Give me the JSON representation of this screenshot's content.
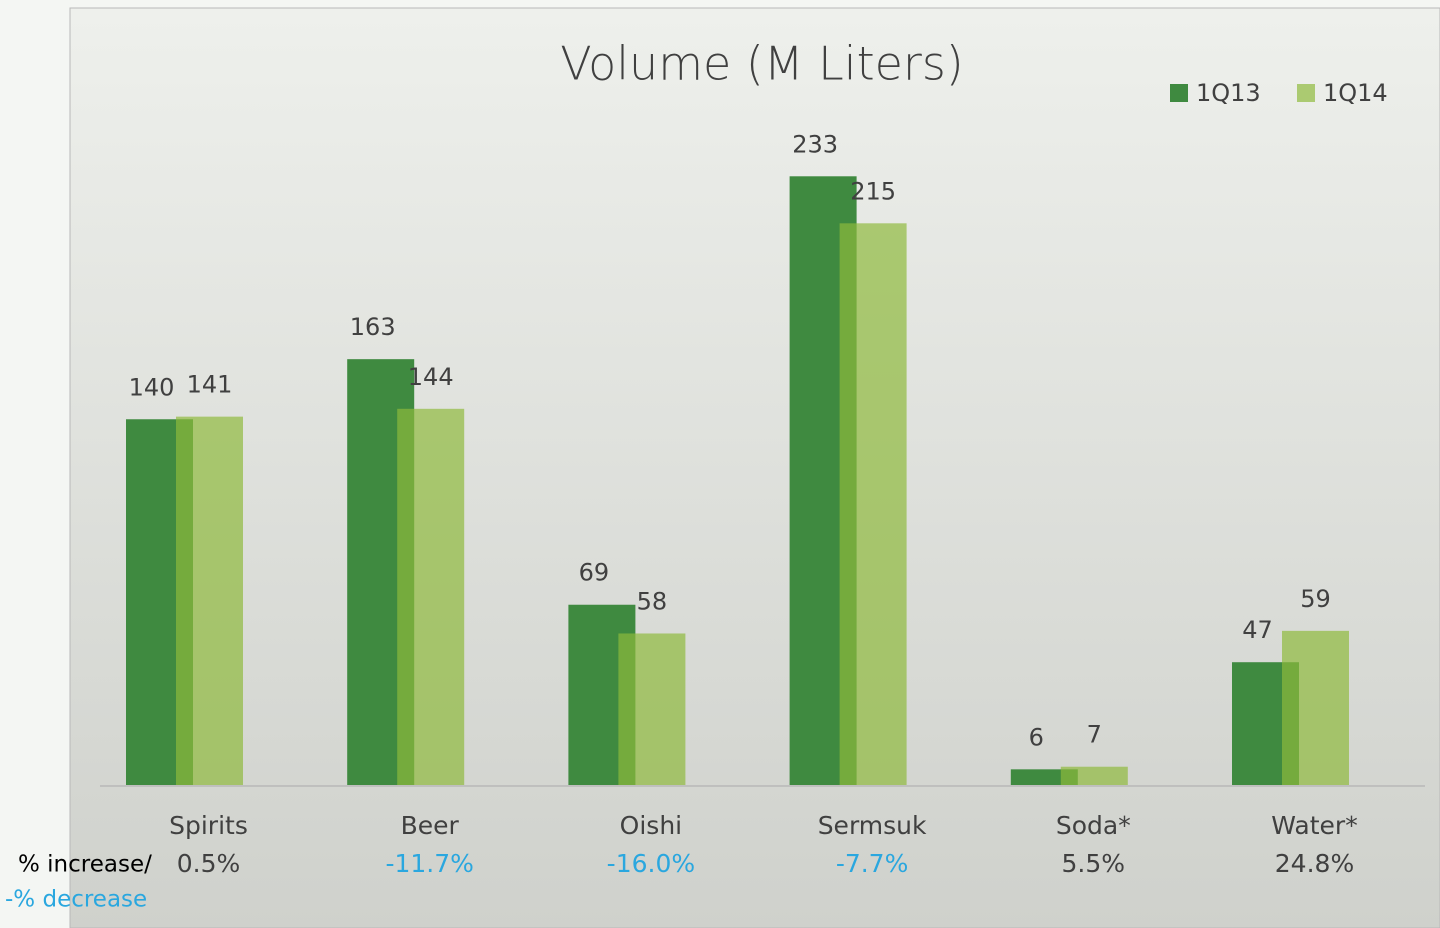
{
  "chart_data": {
    "type": "bar",
    "title": "Volume (M Liters)",
    "categories": [
      "Spirits",
      "Beer",
      "Oishi",
      "Sermsuk",
      "Soda*",
      "Water*"
    ],
    "series": [
      {
        "name": "1Q13",
        "color": "#3f8a40",
        "values": [
          140,
          163,
          69,
          233,
          6,
          47
        ]
      },
      {
        "name": "1Q14",
        "color": "#8eb93b",
        "values": [
          141,
          144,
          58,
          215,
          7,
          59
        ]
      }
    ],
    "ylim": [
      0,
      240
    ],
    "change_caption": [
      "% increase/",
      "-% decrease"
    ],
    "changes": [
      "0.5%",
      "-11.7%",
      "-16.0%",
      "-7.7%",
      "5.5%",
      "24.8%"
    ],
    "legend": "top-right"
  }
}
